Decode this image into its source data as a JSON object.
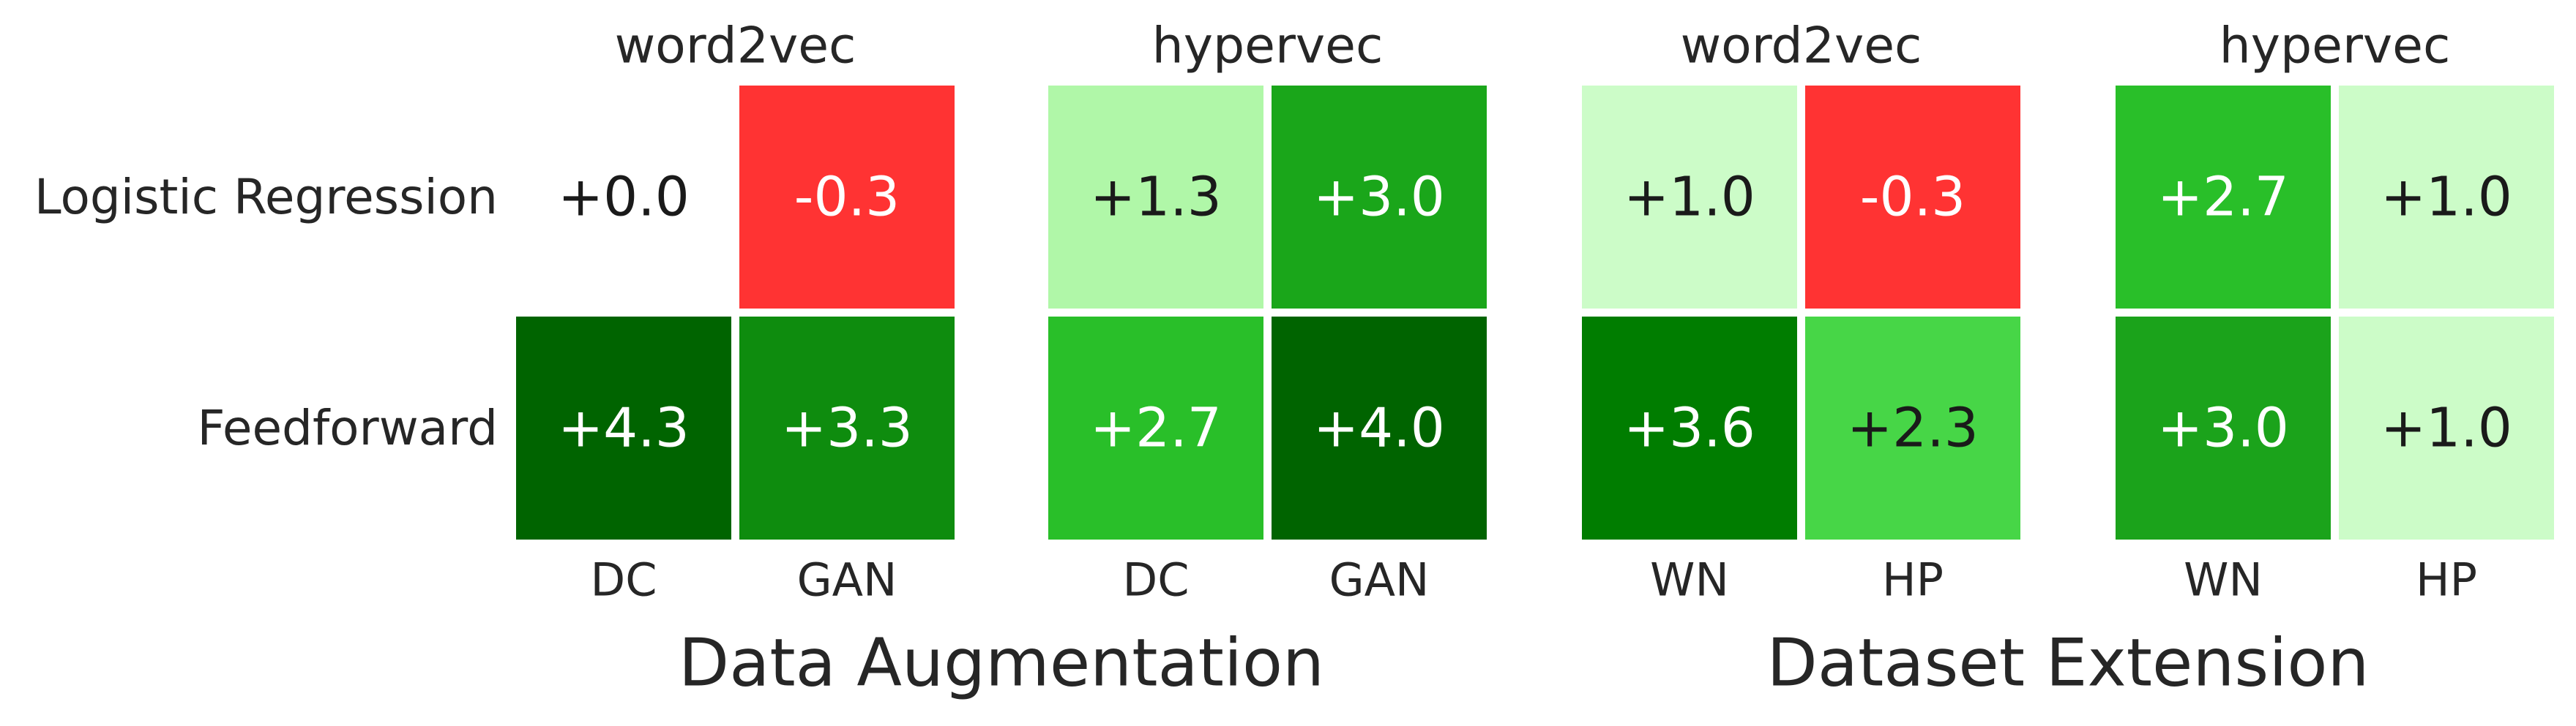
{
  "rows": [
    "Logistic Regression",
    "Feedforward"
  ],
  "groups": [
    {
      "title": "Data Augmentation"
    },
    {
      "title": "Dataset Extension"
    }
  ],
  "chart_data": [
    {
      "type": "heatmap",
      "title": "word2vec",
      "categories": [
        "DC",
        "GAN"
      ],
      "values": [
        [
          0.0,
          -0.3
        ],
        [
          4.3,
          3.3
        ]
      ],
      "value_labels": [
        [
          "+0.0",
          "-0.3"
        ],
        [
          "+4.3",
          "+3.3"
        ]
      ],
      "colors": [
        [
          "#ffffff",
          "#ff3333"
        ],
        [
          "#006400",
          "#0e8c0e"
        ]
      ]
    },
    {
      "type": "heatmap",
      "title": "hypervec",
      "categories": [
        "DC",
        "GAN"
      ],
      "values": [
        [
          1.3,
          3.0
        ],
        [
          2.7,
          4.0
        ]
      ],
      "value_labels": [
        [
          "+1.3",
          "+3.0"
        ],
        [
          "+2.7",
          "+4.0"
        ]
      ],
      "colors": [
        [
          "#b0f7a8",
          "#1aa61a"
        ],
        [
          "#29bf29",
          "#006400"
        ]
      ]
    },
    {
      "type": "heatmap",
      "title": "word2vec",
      "categories": [
        "WN",
        "HP"
      ],
      "values": [
        [
          1.0,
          -0.3
        ],
        [
          3.6,
          2.3
        ]
      ],
      "value_labels": [
        [
          "+1.0",
          "-0.3"
        ],
        [
          "+3.6",
          "+2.3"
        ]
      ],
      "colors": [
        [
          "#ccfcc8",
          "#ff3333"
        ],
        [
          "#007d00",
          "#47d647"
        ]
      ]
    },
    {
      "type": "heatmap",
      "title": "hypervec",
      "categories": [
        "WN",
        "HP"
      ],
      "values": [
        [
          2.7,
          1.0
        ],
        [
          3.0,
          1.0
        ]
      ],
      "value_labels": [
        [
          "+2.7",
          "+1.0"
        ],
        [
          "+3.0",
          "+1.0"
        ]
      ],
      "colors": [
        [
          "#29bf29",
          "#ccfcc8"
        ],
        [
          "#1ba31b",
          "#ccfcc8"
        ]
      ]
    }
  ]
}
